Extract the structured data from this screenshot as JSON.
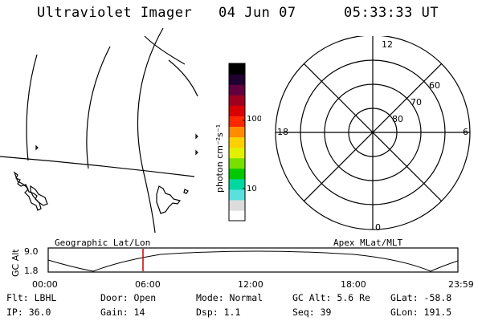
{
  "header": {
    "instrument": "Ultraviolet Imager",
    "date": "04 Jun 07",
    "time": "05:33:33 UT"
  },
  "colorbar": {
    "unit_label": "photon cm⁻²s⁻¹",
    "tick_labels": [
      "100",
      "10"
    ],
    "colors": [
      "#ffffff",
      "#dcdcdc",
      "#5be0e0",
      "#00d8a0",
      "#00c800",
      "#78e000",
      "#e0f000",
      "#ffd000",
      "#ff8c00",
      "#ff2800",
      "#d80000",
      "#a00020",
      "#600040",
      "#200030",
      "#000000"
    ]
  },
  "polar_plot": {
    "mlt_labels": {
      "top": "12",
      "left": "18",
      "right": "6",
      "bottom": "0"
    },
    "lat_labels": [
      "80",
      "70",
      "60"
    ]
  },
  "projection_labels": {
    "left": "Geographic Lat/Lon",
    "right": "Apex MLat/MLT"
  },
  "altitude_plot": {
    "axis_label": "GC Alt",
    "y_ticks": [
      "9.0",
      "1.8"
    ],
    "x_ticks": [
      "00:00",
      "06:00",
      "12:00",
      "18:00",
      "23:59"
    ],
    "marker_time": "05:33"
  },
  "info": {
    "filter": "Flt: LBHL",
    "door": "Door: Open",
    "mode": "Mode: Normal",
    "gc_alt": "GC Alt: 5.6 Re",
    "glat": "GLat: -58.8",
    "ip": "IP: 36.0",
    "gain": "Gain: 14",
    "dsp": "Dsp:   1.1",
    "seq": "Seq: 39",
    "glon": "GLon: 191.5"
  }
}
